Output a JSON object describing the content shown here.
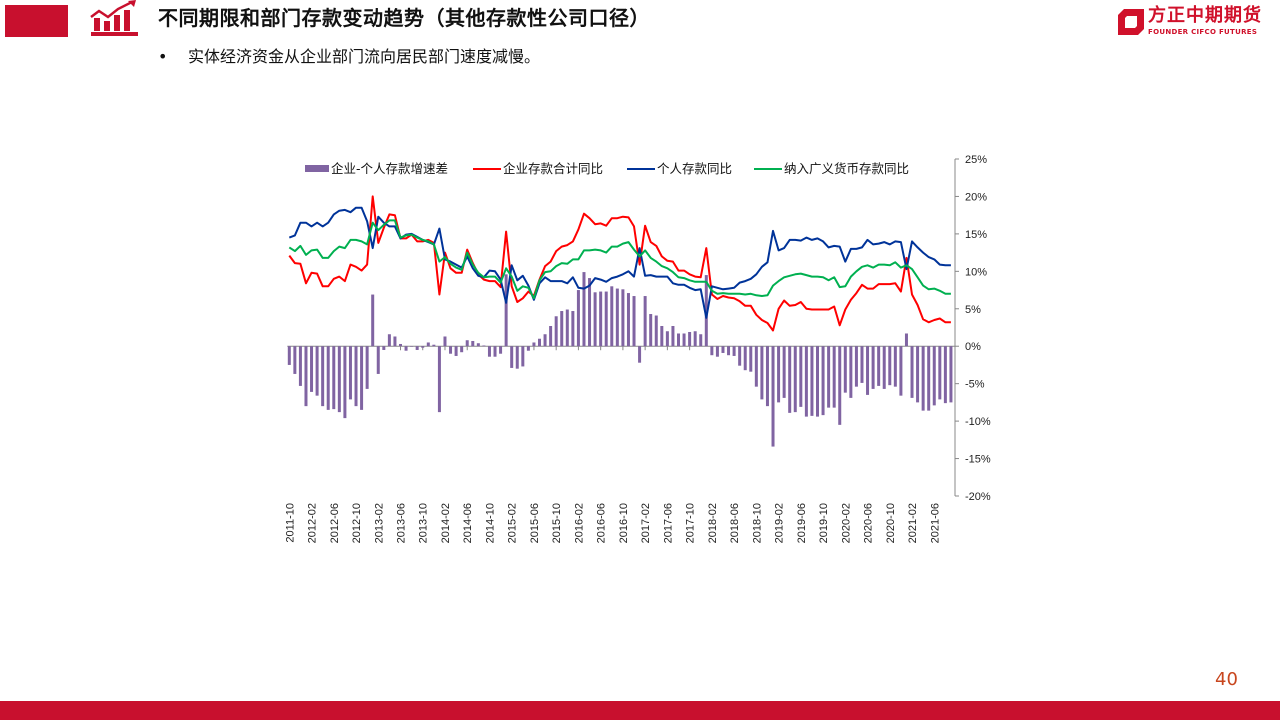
{
  "header": {
    "title": "不同期限和部门存款变动趋势（其他存款性公司口径）",
    "bullet": "实体经济资金从企业部门流向居民部门速度减慢。",
    "bullet_marker": "•"
  },
  "logo": {
    "cn": "方正中期期货",
    "en": "FOUNDER CIFCO FUTURES"
  },
  "page_number": "40",
  "colors": {
    "brand": "#c8102e",
    "bar": "#8064a2",
    "red": "#ff0000",
    "blue": "#003399",
    "green": "#00b050"
  },
  "chart_data": {
    "type": "bar+line",
    "title": "",
    "legend_position": "top",
    "x_start": "2011-10",
    "x_tick_labels": [
      "2011-10",
      "2012-02",
      "2012-06",
      "2012-10",
      "2013-02",
      "2013-06",
      "2013-10",
      "2014-02",
      "2014-06",
      "2014-10",
      "2015-02",
      "2015-06",
      "2015-10",
      "2016-02",
      "2016-06",
      "2016-10",
      "2017-02",
      "2017-06",
      "2017-10",
      "2018-02",
      "2018-06",
      "2018-10",
      "2019-02",
      "2019-06",
      "2019-10",
      "2020-02",
      "2020-06",
      "2020-10",
      "2021-02",
      "2021-06"
    ],
    "y_tick_labels": [
      "25%",
      "20%",
      "15%",
      "10%",
      "5%",
      "0%",
      "-5%",
      "-10%",
      "-15%",
      "-20%"
    ],
    "ylim": [
      -20,
      25
    ],
    "y_unit": "%",
    "series": [
      {
        "name": "企业-个人存款增速差",
        "kind": "bar",
        "color": "#8064a2",
        "values": [
          -2.5,
          -3.7,
          -5.3,
          -8.0,
          -6.1,
          -6.6,
          -8.0,
          -8.5,
          -8.4,
          -8.8,
          -9.6,
          -7.1,
          -8.0,
          -8.5,
          -5.7,
          6.9,
          -3.7,
          -0.5,
          1.6,
          1.3,
          0.3,
          -0.6,
          0,
          -0.5,
          -0.2,
          0.5,
          0.2,
          -8.8,
          1.3,
          -1.0,
          -1.3,
          -0.8,
          0.8,
          0.7,
          0.4,
          0.1,
          -1.4,
          -1.4,
          -1.0,
          9.6,
          -2.9,
          -3.0,
          -2.7,
          -0.6,
          0.5,
          1.0,
          1.6,
          2.7,
          4.0,
          4.7,
          4.9,
          4.7,
          7.5,
          9.9,
          9.1,
          7.2,
          7.3,
          7.3,
          8.0,
          7.7,
          7.6,
          7.1,
          6.7,
          -2.2,
          6.7,
          4.3,
          4.1,
          2.7,
          2.0,
          2.7,
          1.7,
          1.7,
          1.9,
          2.0,
          1.6,
          9.5,
          -1.2,
          -1.4,
          -0.9,
          -1.2,
          -1.3,
          -2.6,
          -3.2,
          -3.4,
          -5.4,
          -7.1,
          -8.0,
          -13.4,
          -7.5,
          -6.9,
          -8.9,
          -8.8,
          -8.1,
          -9.4,
          -9.3,
          -9.4,
          -9.2,
          -8.2,
          -8.2,
          -10.5,
          -6.2,
          -6.9,
          -5.4,
          -4.9,
          -6.5,
          -5.7,
          -5.3,
          -5.7,
          -5.2,
          -5.4,
          -6.6,
          1.7,
          -6.9,
          -7.5,
          -8.6,
          -8.6,
          -7.9,
          -7.1,
          -7.6,
          -7.5
        ]
      },
      {
        "name": "企业存款合计同比",
        "kind": "line",
        "color": "#ff0000",
        "values": [
          12.1,
          11.1,
          11.0,
          8.4,
          9.8,
          9.7,
          8.0,
          8.0,
          9.0,
          9.3,
          8.7,
          10.9,
          10.6,
          10.1,
          10.9,
          20.0,
          13.8,
          15.8,
          17.6,
          17.5,
          14.4,
          14.4,
          14.9,
          14.0,
          14.0,
          14.2,
          13.8,
          6.9,
          12.5,
          10.4,
          9.8,
          9.8,
          12.9,
          11.1,
          9.6,
          8.9,
          8.7,
          8.7,
          7.9,
          15.3,
          8.0,
          5.9,
          6.4,
          7.3,
          6.7,
          8.9,
          10.7,
          11.3,
          12.7,
          13.3,
          13.5,
          14.0,
          15.6,
          17.7,
          17.1,
          16.3,
          16.4,
          16.1,
          17.1,
          17.1,
          17.3,
          17.2,
          16.0,
          10.9,
          16.1,
          13.9,
          13.4,
          12.0,
          11.4,
          11.3,
          10.1,
          10.1,
          9.6,
          9.3,
          9.2,
          13.1,
          6.9,
          6.3,
          6.7,
          6.5,
          6.4,
          6.0,
          5.4,
          5.4,
          4.2,
          3.5,
          3.1,
          2.1,
          5.0,
          6.1,
          5.4,
          5.5,
          5.9,
          5.0,
          4.9,
          4.9,
          4.9,
          4.9,
          5.3,
          2.8,
          4.9,
          6.2,
          7.1,
          8.2,
          7.7,
          7.7,
          8.3,
          8.3,
          8.3,
          8.4,
          7.3,
          11.8,
          6.9,
          5.5,
          3.6,
          3.2,
          3.5,
          3.7,
          3.2,
          3.2
        ]
      },
      {
        "name": "个人存款同比",
        "kind": "line",
        "color": "#003399",
        "values": [
          14.5,
          14.8,
          16.5,
          16.5,
          16.0,
          16.5,
          16.0,
          16.5,
          17.6,
          18.1,
          18.2,
          17.9,
          18.5,
          18.5,
          16.7,
          13.1,
          17.3,
          16.5,
          16.0,
          16.0,
          14.4,
          14.9,
          15.0,
          14.6,
          14.2,
          13.9,
          13.6,
          15.7,
          11.6,
          11.3,
          10.9,
          10.5,
          12.0,
          10.4,
          9.4,
          9.2,
          10.1,
          10.0,
          8.9,
          5.8,
          10.8,
          8.8,
          9.4,
          8.1,
          6.2,
          8.4,
          9.2,
          8.7,
          8.7,
          8.7,
          8.4,
          9.2,
          7.8,
          7.7,
          8.1,
          9.1,
          8.9,
          8.6,
          9.1,
          9.3,
          9.6,
          10.0,
          9.3,
          13.1,
          9.4,
          9.5,
          9.3,
          9.3,
          9.3,
          8.4,
          8.2,
          8.2,
          7.8,
          7.5,
          7.6,
          3.8,
          8.0,
          7.8,
          7.6,
          7.7,
          7.8,
          8.5,
          8.7,
          9.0,
          9.6,
          10.6,
          11.2,
          15.4,
          12.8,
          13.1,
          14.2,
          14.2,
          14.1,
          14.5,
          14.2,
          14.4,
          14.0,
          13.2,
          13.4,
          13.3,
          11.3,
          13.0,
          13.0,
          13.2,
          14.2,
          13.6,
          13.7,
          13.9,
          13.6,
          14.0,
          13.9,
          10.3,
          14.0,
          13.2,
          12.5,
          11.9,
          11.6,
          10.9,
          10.8,
          10.8
        ]
      },
      {
        "name": "纳入广义货币存款同比",
        "kind": "line",
        "color": "#00b050",
        "values": [
          13.2,
          12.7,
          13.4,
          12.2,
          12.8,
          12.9,
          11.8,
          11.8,
          12.7,
          13.3,
          13.1,
          14.2,
          14.2,
          14.0,
          13.6,
          16.5,
          15.5,
          16.2,
          16.8,
          16.8,
          14.5,
          14.8,
          14.9,
          14.5,
          14.2,
          14.0,
          13.6,
          11.3,
          11.9,
          11.0,
          10.5,
          10.2,
          12.5,
          10.9,
          9.8,
          9.2,
          9.3,
          9.3,
          8.5,
          10.4,
          9.3,
          7.4,
          8.0,
          7.8,
          6.4,
          8.8,
          9.9,
          10.0,
          10.7,
          11.1,
          11.0,
          11.6,
          11.6,
          12.8,
          12.8,
          12.9,
          12.8,
          12.5,
          13.3,
          13.3,
          13.7,
          13.9,
          12.9,
          12.0,
          12.8,
          11.8,
          11.3,
          10.7,
          10.4,
          9.9,
          9.2,
          9.1,
          8.8,
          8.6,
          8.6,
          8.6,
          7.4,
          7.0,
          7.1,
          7.0,
          7.0,
          7.0,
          6.9,
          7.0,
          6.8,
          6.7,
          6.8,
          8.1,
          8.7,
          9.2,
          9.4,
          9.6,
          9.7,
          9.5,
          9.3,
          9.3,
          9.2,
          8.8,
          9.2,
          7.9,
          8.0,
          9.3,
          10.0,
          10.6,
          10.8,
          10.5,
          10.9,
          10.9,
          10.8,
          11.2,
          10.5,
          10.8,
          10.3,
          9.2,
          8.1,
          7.6,
          7.7,
          7.4,
          7.0,
          7.0
        ]
      }
    ]
  }
}
